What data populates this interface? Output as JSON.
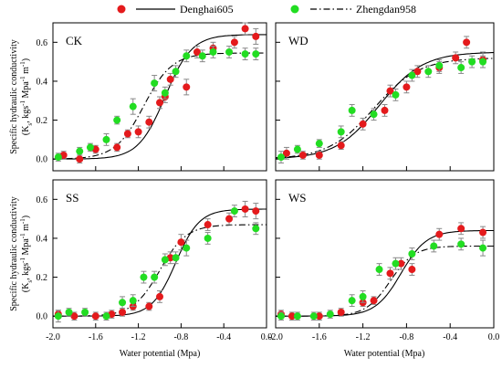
{
  "legend": {
    "series": [
      {
        "name": "Denghai605",
        "color": "#e41a1c",
        "line": "solid"
      },
      {
        "name": "Zhengdan958",
        "color": "#22dd22",
        "line": "dashdot"
      }
    ]
  },
  "ylabel_line1": "Specific hydraulic conductivity",
  "ylabel_line2_parts": [
    "(K",
    "s",
    ", kgs",
    "-1",
    " Mpa",
    "-1",
    " m",
    "-1",
    ")"
  ],
  "xlabel": "Water potential (Mpa)",
  "xticks": [
    "-2.0",
    "-1.6",
    "-1.2",
    "-0.8",
    "-0.4",
    "0.0"
  ],
  "yticks": [
    "0.0",
    "0.2",
    "0.4",
    "0.6"
  ],
  "chart_data": [
    {
      "type": "scatter",
      "panel": "CK",
      "xlim": [
        -2.0,
        0.0
      ],
      "ylim": [
        -0.06,
        0.7
      ],
      "series": [
        {
          "name": "Denghai605",
          "x": [
            -1.9,
            -1.75,
            -1.6,
            -1.4,
            -1.3,
            -1.2,
            -1.1,
            -1.0,
            -0.95,
            -0.9,
            -0.75,
            -0.65,
            -0.5,
            -0.3,
            -0.2,
            -0.1
          ],
          "y": [
            0.02,
            0.0,
            0.05,
            0.06,
            0.13,
            0.14,
            0.19,
            0.29,
            0.32,
            0.41,
            0.37,
            0.55,
            0.57,
            0.6,
            0.67,
            0.63
          ],
          "err": [
            0.02,
            0.02,
            0.02,
            0.02,
            0.02,
            0.03,
            0.03,
            0.03,
            0.03,
            0.03,
            0.04,
            0.03,
            0.03,
            0.03,
            0.03,
            0.04
          ]
        },
        {
          "name": "Zhengdan958",
          "x": [
            -1.95,
            -1.75,
            -1.65,
            -1.5,
            -1.4,
            -1.25,
            -1.05,
            -0.95,
            -0.85,
            -0.75,
            -0.6,
            -0.5,
            -0.35,
            -0.2,
            -0.1
          ],
          "y": [
            0.01,
            0.04,
            0.06,
            0.1,
            0.2,
            0.27,
            0.39,
            0.34,
            0.45,
            0.53,
            0.53,
            0.55,
            0.55,
            0.54,
            0.54
          ],
          "err": [
            0.02,
            0.02,
            0.02,
            0.03,
            0.02,
            0.04,
            0.04,
            0.03,
            0.03,
            0.03,
            0.03,
            0.03,
            0.03,
            0.03,
            0.03
          ]
        }
      ],
      "curves": {
        "Denghai605": {
          "asym": 0.64,
          "mid": -0.95,
          "slope": 8.0
        },
        "Zhengdan958": {
          "asym": 0.545,
          "mid": -1.15,
          "slope": 7.5
        }
      }
    },
    {
      "type": "scatter",
      "panel": "WD",
      "xlim": [
        -2.0,
        0.0
      ],
      "ylim": [
        -0.06,
        0.7
      ],
      "series": [
        {
          "name": "Denghai605",
          "x": [
            -1.9,
            -1.75,
            -1.6,
            -1.4,
            -1.2,
            -1.0,
            -0.95,
            -0.8,
            -0.7,
            -0.5,
            -0.35,
            -0.25,
            -0.1
          ],
          "y": [
            0.03,
            0.02,
            0.02,
            0.07,
            0.18,
            0.25,
            0.35,
            0.37,
            0.45,
            0.47,
            0.52,
            0.6,
            0.51
          ],
          "err": [
            0.03,
            0.02,
            0.02,
            0.02,
            0.03,
            0.03,
            0.03,
            0.03,
            0.03,
            0.03,
            0.03,
            0.03,
            0.04
          ]
        },
        {
          "name": "Zhengdan958",
          "x": [
            -1.95,
            -1.8,
            -1.6,
            -1.4,
            -1.3,
            -1.1,
            -0.9,
            -0.75,
            -0.6,
            -0.5,
            -0.3,
            -0.2,
            -0.1
          ],
          "y": [
            0.01,
            0.05,
            0.08,
            0.14,
            0.25,
            0.23,
            0.33,
            0.43,
            0.45,
            0.48,
            0.47,
            0.5,
            0.5
          ],
          "err": [
            0.03,
            0.02,
            0.02,
            0.03,
            0.03,
            0.03,
            0.03,
            0.03,
            0.03,
            0.03,
            0.03,
            0.03,
            0.03
          ]
        }
      ],
      "curves": {
        "Denghai605": {
          "asym": 0.55,
          "mid": -1.05,
          "slope": 5.0
        },
        "Zhengdan958": {
          "asym": 0.52,
          "mid": -1.1,
          "slope": 4.8
        }
      }
    },
    {
      "type": "scatter",
      "panel": "SS",
      "xlim": [
        -2.0,
        0.0
      ],
      "ylim": [
        -0.06,
        0.7
      ],
      "series": [
        {
          "name": "Denghai605",
          "x": [
            -1.95,
            -1.8,
            -1.6,
            -1.45,
            -1.35,
            -1.25,
            -1.1,
            -1.0,
            -0.9,
            -0.8,
            -0.55,
            -0.35,
            -0.2,
            -0.1
          ],
          "y": [
            0.01,
            0.0,
            0.0,
            0.01,
            0.02,
            0.05,
            0.05,
            0.1,
            0.3,
            0.38,
            0.47,
            0.5,
            0.55,
            0.54
          ],
          "err": [
            0.02,
            0.02,
            0.02,
            0.02,
            0.02,
            0.02,
            0.02,
            0.03,
            0.03,
            0.04,
            0.03,
            0.03,
            0.04,
            0.04
          ]
        },
        {
          "name": "Zhengdan958",
          "x": [
            -1.95,
            -1.85,
            -1.7,
            -1.5,
            -1.35,
            -1.25,
            -1.15,
            -1.05,
            -0.95,
            -0.85,
            -0.75,
            -0.55,
            -0.3,
            -0.1
          ],
          "y": [
            0.0,
            0.02,
            0.02,
            0.0,
            0.07,
            0.08,
            0.2,
            0.2,
            0.29,
            0.3,
            0.35,
            0.4,
            0.54,
            0.45
          ],
          "err": [
            0.03,
            0.02,
            0.02,
            0.02,
            0.03,
            0.03,
            0.03,
            0.03,
            0.03,
            0.03,
            0.04,
            0.03,
            0.03,
            0.03
          ]
        }
      ],
      "curves": {
        "Denghai605": {
          "asym": 0.55,
          "mid": -0.85,
          "slope": 9.0
        },
        "Zhengdan958": {
          "asym": 0.47,
          "mid": -1.0,
          "slope": 8.0
        }
      }
    },
    {
      "type": "scatter",
      "panel": "WS",
      "xlim": [
        -2.0,
        0.0
      ],
      "ylim": [
        -0.06,
        0.7
      ],
      "series": [
        {
          "name": "Denghai605",
          "x": [
            -1.95,
            -1.85,
            -1.6,
            -1.4,
            -1.2,
            -1.1,
            -0.95,
            -0.85,
            -0.75,
            -0.5,
            -0.3,
            -0.1
          ],
          "y": [
            0.01,
            0.0,
            0.0,
            0.02,
            0.07,
            0.08,
            0.22,
            0.27,
            0.24,
            0.42,
            0.45,
            0.43
          ],
          "err": [
            0.02,
            0.02,
            0.02,
            0.02,
            0.02,
            0.02,
            0.03,
            0.03,
            0.03,
            0.03,
            0.03,
            0.03
          ]
        },
        {
          "name": "Zhengdan958",
          "x": [
            -1.95,
            -1.8,
            -1.65,
            -1.5,
            -1.3,
            -1.2,
            -1.05,
            -0.9,
            -0.75,
            -0.55,
            -0.3,
            -0.1
          ],
          "y": [
            0.0,
            0.0,
            0.0,
            0.01,
            0.08,
            0.1,
            0.24,
            0.27,
            0.32,
            0.36,
            0.37,
            0.35
          ],
          "err": [
            0.02,
            0.02,
            0.02,
            0.02,
            0.03,
            0.03,
            0.03,
            0.03,
            0.03,
            0.03,
            0.03,
            0.04
          ]
        }
      ],
      "curves": {
        "Denghai605": {
          "asym": 0.44,
          "mid": -0.85,
          "slope": 8.5
        },
        "Zhengdan958": {
          "asym": 0.36,
          "mid": -0.95,
          "slope": 9.0
        }
      }
    }
  ]
}
